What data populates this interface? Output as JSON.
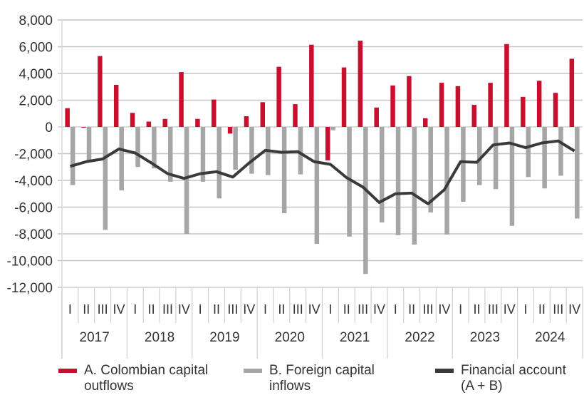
{
  "chart_data": {
    "type": "bar+line",
    "years": [
      "2017",
      "2018",
      "2019",
      "2020",
      "2021",
      "2022",
      "2023",
      "2024"
    ],
    "quarters": [
      "I",
      "II",
      "III",
      "IV"
    ],
    "ylim": [
      -12000,
      8000
    ],
    "yticks": [
      "8,000",
      "6,000",
      "4,000",
      "2,000",
      "0",
      "-2,000",
      "-4,000",
      "-6,000",
      "-8,000",
      "-10,000",
      "-12,000"
    ],
    "ytick_values": [
      8000,
      6000,
      4000,
      2000,
      0,
      -2000,
      -4000,
      -6000,
      -8000,
      -10000,
      -12000
    ],
    "grid": true,
    "legend_position": "bottom",
    "series": [
      {
        "name": "A. Colombian capital outflows",
        "kind": "bar",
        "color": "#c8102e",
        "values": [
          1400,
          -50,
          5300,
          3150,
          1050,
          400,
          600,
          4100,
          600,
          2050,
          -500,
          800,
          1850,
          4500,
          1700,
          6150,
          -2500,
          4450,
          6450,
          1450,
          3100,
          3800,
          650,
          3300,
          3050,
          1650,
          3300,
          6200,
          2250,
          3450,
          2550,
          5100
        ]
      },
      {
        "name": "B. Foreign capital inflows",
        "kind": "bar",
        "color": "#a6a6a6",
        "values": [
          -4350,
          -2500,
          -7700,
          -4750,
          -3000,
          -3100,
          -4100,
          -8000,
          -4100,
          -5350,
          -3200,
          -3500,
          -3600,
          -6450,
          -3550,
          -8750,
          -250,
          -8200,
          -11000,
          -7150,
          -8100,
          -8800,
          -6400,
          -8050,
          -5600,
          -4350,
          -4650,
          -7400,
          -3750,
          -4600,
          -3650,
          -6850
        ]
      },
      {
        "name": "Financial account (A + B)",
        "kind": "line",
        "color": "#3a3a3a",
        "values": [
          -2950,
          -2600,
          -2400,
          -1650,
          -1950,
          -2700,
          -3500,
          -3850,
          -3500,
          -3350,
          -3750,
          -2700,
          -1750,
          -1900,
          -1850,
          -2600,
          -2800,
          -3800,
          -4500,
          -5650,
          -5000,
          -4950,
          -5750,
          -4700,
          -2600,
          -2650,
          -1350,
          -1200,
          -1550,
          -1200,
          -1050,
          -1800
        ]
      }
    ]
  },
  "legend": {
    "a_line1": "A. Colombian capital",
    "a_line2": "outflows",
    "b_line1": "B. Foreign capital",
    "b_line2": "inflows",
    "c_line1": "Financial account",
    "c_line2": "(A + B)"
  }
}
